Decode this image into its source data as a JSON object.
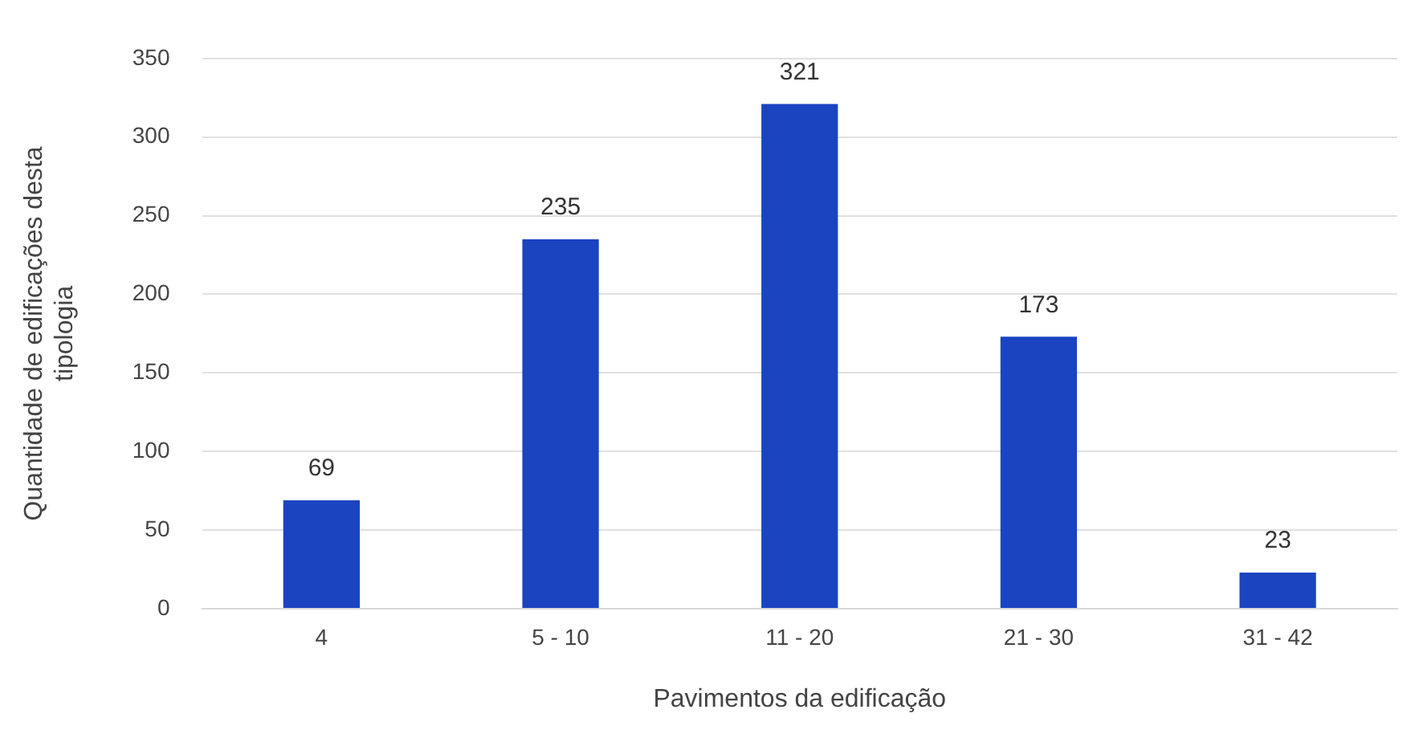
{
  "chart_data": {
    "type": "bar",
    "xlabel": "Pavimentos da edificação",
    "ylabel": "Quantidade de edificações desta tipologia",
    "categories": [
      "4",
      "5 - 10",
      "11 - 20",
      "21 - 30",
      "31 - 42"
    ],
    "values": [
      69,
      235,
      321,
      173,
      23
    ],
    "color": "#1a44c0",
    "ylim": [
      0,
      350
    ],
    "yticks": [
      0,
      50,
      100,
      150,
      200,
      250,
      300,
      350
    ],
    "grid": "y",
    "data_labels": true
  }
}
